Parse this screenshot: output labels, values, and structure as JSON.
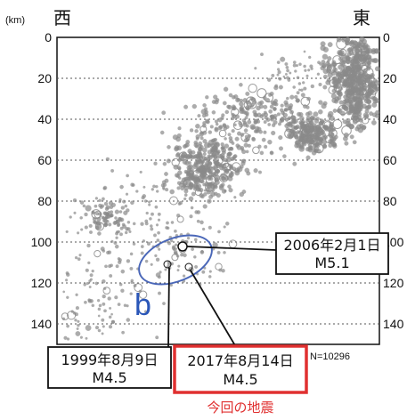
{
  "chart_data": {
    "type": "scatter",
    "unit_label": "(km)",
    "west_label": "西",
    "east_label": "東",
    "y_ticks": [
      0,
      20,
      40,
      60,
      80,
      100,
      120,
      140
    ],
    "ylim": [
      0,
      147
    ],
    "grid": "horizontal dotted",
    "n_label": "N=10296",
    "region_label": "b",
    "callouts": {
      "eq2006_line1": "2006年2月1日",
      "eq2006_line2": "M5.1",
      "eq1999_line1": "1999年8月9日",
      "eq1999_line2": "M4.5",
      "eq2017_line1": "2017年8月14日",
      "eq2017_line2": "M4.5",
      "current_label": "今回の地震"
    },
    "colors": {
      "points": "#8a8a8a",
      "ellipse": "#4a67b8",
      "highlight": "#e03030"
    }
  }
}
